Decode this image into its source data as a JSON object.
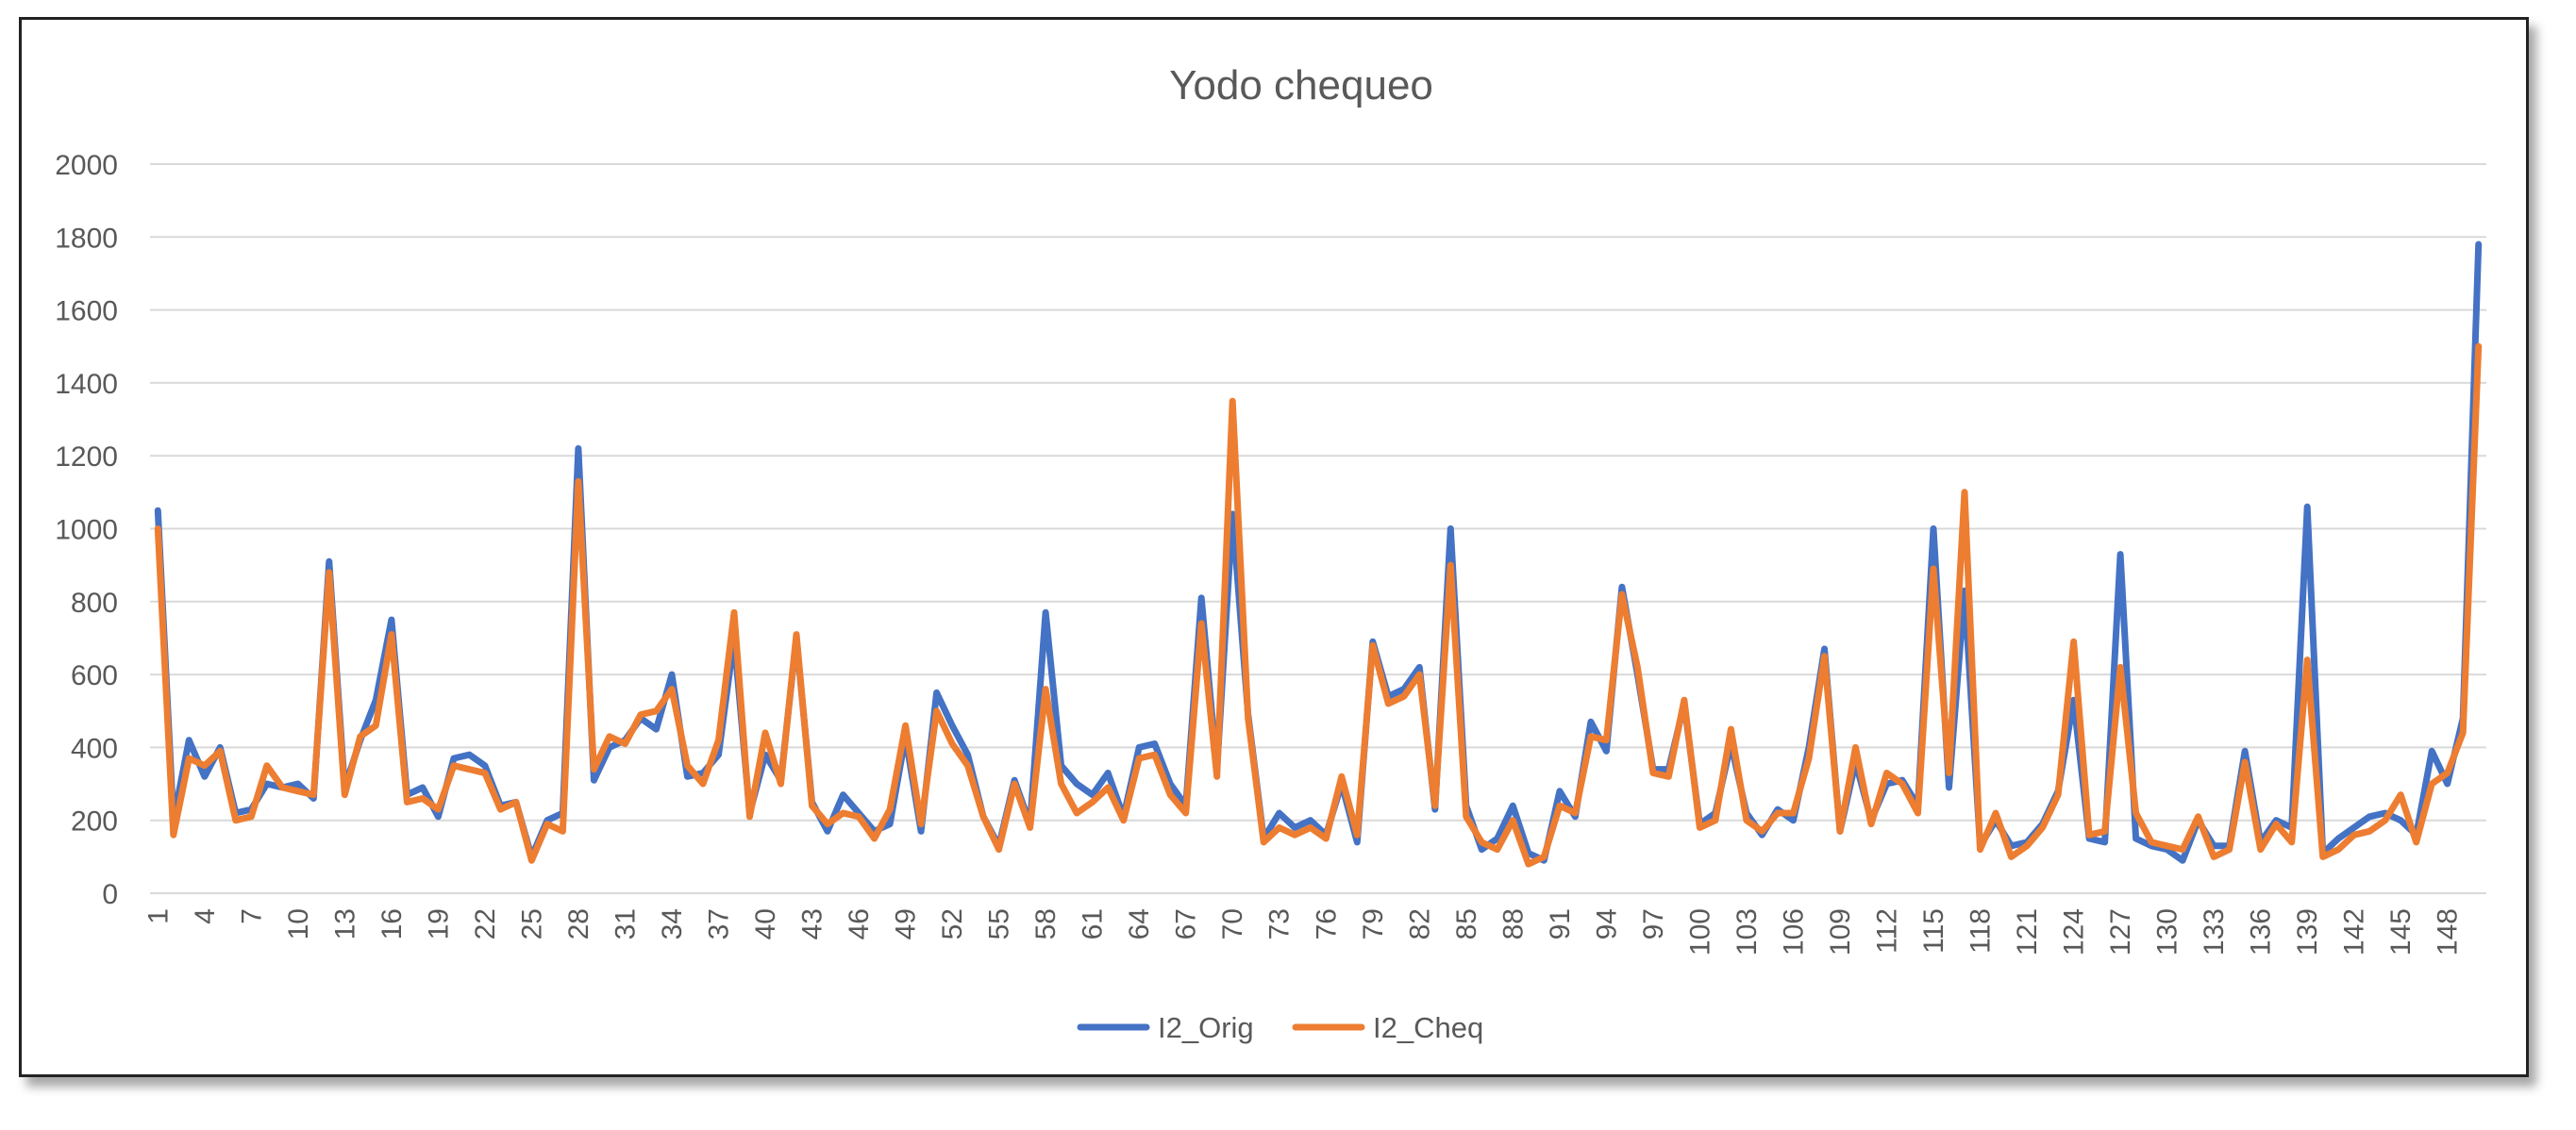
{
  "chart_data": {
    "type": "line",
    "title": "Yodo chequeo",
    "xlabel": "",
    "ylabel": "",
    "ylim": [
      0,
      2000
    ],
    "yticks": [
      "0",
      "200",
      "400",
      "600",
      "800",
      "1000",
      "1200",
      "1400",
      "1600",
      "1800",
      "2000"
    ],
    "x_count": 150,
    "x_ticks": [
      "1",
      "4",
      "7",
      "10",
      "13",
      "16",
      "19",
      "22",
      "25",
      "28",
      "31",
      "34",
      "37",
      "40",
      "43",
      "46",
      "49",
      "52",
      "55",
      "58",
      "61",
      "64",
      "67",
      "70",
      "73",
      "76",
      "79",
      "82",
      "85",
      "88",
      "91",
      "94",
      "97",
      "100",
      "103",
      "106",
      "109",
      "112",
      "115",
      "118",
      "121",
      "124",
      "127",
      "130",
      "133",
      "136",
      "139",
      "142",
      "145",
      "148"
    ],
    "grid": "horizontal",
    "legend_position": "bottom",
    "series": [
      {
        "name": "I2_Orig",
        "color": "#4472c4",
        "values": [
          1050,
          200,
          420,
          320,
          400,
          220,
          230,
          300,
          290,
          300,
          260,
          910,
          290,
          420,
          530,
          750,
          270,
          290,
          210,
          370,
          380,
          350,
          240,
          250,
          100,
          200,
          220,
          1220,
          310,
          400,
          420,
          480,
          450,
          600,
          320,
          330,
          380,
          700,
          220,
          380,
          310,
          700,
          250,
          170,
          270,
          220,
          170,
          190,
          430,
          170,
          550,
          460,
          380,
          210,
          130,
          310,
          190,
          770,
          350,
          300,
          270,
          330,
          210,
          400,
          410,
          300,
          240,
          810,
          340,
          1040,
          490,
          150,
          220,
          180,
          200,
          160,
          300,
          140,
          690,
          540,
          560,
          620,
          230,
          1000,
          240,
          120,
          150,
          240,
          110,
          90,
          280,
          210,
          470,
          390,
          840,
          600,
          340,
          340,
          520,
          190,
          220,
          410,
          220,
          160,
          230,
          200,
          400,
          670,
          170,
          360,
          200,
          300,
          310,
          240,
          1000,
          290,
          830,
          130,
          200,
          130,
          140,
          190,
          280,
          530,
          150,
          140,
          930,
          150,
          130,
          120,
          90,
          200,
          130,
          130,
          390,
          140,
          200,
          180,
          1060,
          110,
          150,
          180,
          210,
          220,
          200,
          160,
          390,
          300,
          480,
          1780
        ]
      },
      {
        "name": "I2_Cheq",
        "color": "#ed7d31",
        "values": [
          1000,
          160,
          370,
          350,
          390,
          200,
          210,
          350,
          290,
          280,
          270,
          880,
          270,
          430,
          460,
          710,
          250,
          260,
          230,
          350,
          340,
          330,
          230,
          250,
          90,
          190,
          170,
          1130,
          340,
          430,
          410,
          490,
          500,
          560,
          350,
          300,
          420,
          770,
          210,
          440,
          300,
          710,
          240,
          190,
          220,
          210,
          150,
          230,
          460,
          190,
          500,
          410,
          350,
          210,
          120,
          300,
          180,
          560,
          300,
          220,
          250,
          290,
          200,
          370,
          380,
          270,
          220,
          740,
          320,
          1350,
          480,
          140,
          180,
          160,
          180,
          150,
          320,
          160,
          680,
          520,
          540,
          600,
          240,
          900,
          210,
          140,
          120,
          200,
          80,
          100,
          240,
          220,
          430,
          420,
          820,
          620,
          330,
          320,
          530,
          180,
          200,
          450,
          200,
          170,
          220,
          220,
          370,
          650,
          170,
          400,
          190,
          330,
          300,
          220,
          890,
          330,
          1100,
          120,
          220,
          100,
          130,
          180,
          270,
          690,
          160,
          170,
          620,
          220,
          140,
          130,
          120,
          210,
          100,
          120,
          360,
          120,
          190,
          140,
          640,
          100,
          120,
          160,
          170,
          200,
          270,
          140,
          300,
          330,
          440,
          1500
        ]
      }
    ]
  }
}
